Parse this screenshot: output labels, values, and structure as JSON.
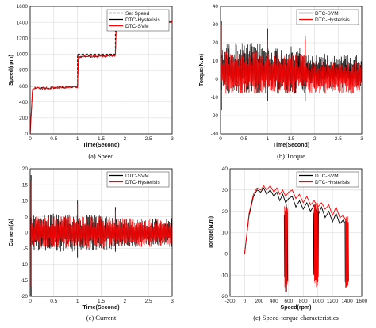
{
  "chart_data": [
    {
      "type": "line",
      "caption": "(a) Speed",
      "xlabel": "Time(Second)",
      "ylabel": "Speed(rpm)",
      "xlim": [
        0,
        3
      ],
      "ylim": [
        0,
        1600
      ],
      "xticks": [
        "0",
        "0.5",
        "1",
        "1.5",
        "2",
        "2.5",
        "3"
      ],
      "yticks": [
        "0",
        "200",
        "400",
        "600",
        "800",
        "1000",
        "1200",
        "1400",
        "1600"
      ],
      "legend": [
        "Set Speed",
        "DTC-Hysterisis",
        "DTC-SVM"
      ],
      "legend_position": "top-right",
      "series": [
        {
          "name": "Set Speed",
          "color": "#000000",
          "dashed": true,
          "x": [
            0,
            1,
            1,
            1.8,
            1.8,
            3
          ],
          "values": [
            600,
            600,
            1000,
            1000,
            1400,
            1400
          ]
        },
        {
          "name": "DTC-Hysterisis",
          "color": "#000000",
          "x": [
            0,
            0.05,
            0.1,
            1,
            1.02,
            1.8,
            1.82,
            3
          ],
          "values": [
            0,
            560,
            570,
            590,
            970,
            980,
            1390,
            1410
          ]
        },
        {
          "name": "DTC-SVM",
          "color": "#ff0000",
          "x": [
            0,
            0.05,
            0.1,
            1,
            1.02,
            1.8,
            1.82,
            3
          ],
          "values": [
            0,
            560,
            570,
            590,
            970,
            980,
            1390,
            1410
          ]
        }
      ]
    },
    {
      "type": "line",
      "caption": "(b) Torque",
      "xlabel": "Time(Second)",
      "ylabel": "Torque(N.m)",
      "xlim": [
        0,
        3
      ],
      "ylim": [
        -30,
        40
      ],
      "xticks": [
        "0",
        "0.5",
        "1",
        "1.5",
        "2",
        "2.5",
        "3"
      ],
      "yticks": [
        "-30",
        "-20",
        "-10",
        "0",
        "10",
        "20",
        "30",
        "40"
      ],
      "legend": [
        "DTC-SVM",
        "DTC-Hysterisis"
      ],
      "legend_position": "top-right",
      "series": [
        {
          "name": "DTC-SVM",
          "color": "#000000",
          "x": [
            0,
            1,
            1.8,
            3
          ],
          "values": [
            5,
            5,
            5,
            5
          ],
          "band": [
            [
              0,
              -8,
              20
            ],
            [
              1,
              -8,
              18
            ],
            [
              1.8,
              -5,
              14
            ],
            [
              3,
              -5,
              14
            ]
          ],
          "spikes": [
            [
              0.02,
              32
            ],
            [
              0.02,
              -17
            ],
            [
              1.0,
              28
            ],
            [
              1.0,
              -12
            ],
            [
              1.8,
              24
            ],
            [
              1.8,
              -12
            ]
          ]
        },
        {
          "name": "DTC-Hysterisis",
          "color": "#ff0000",
          "x": [
            0,
            1,
            1.8,
            3
          ],
          "values": [
            5,
            5,
            3,
            3
          ],
          "band": [
            [
              0,
              -8,
              15
            ],
            [
              1,
              -8,
              14
            ],
            [
              1.8,
              -8,
              10
            ],
            [
              3,
              -8,
              10
            ]
          ],
          "spikes": [
            [
              0.02,
              30
            ],
            [
              1.0,
              22
            ],
            [
              1.8,
              22
            ]
          ]
        }
      ]
    },
    {
      "type": "line",
      "caption": "(c) Current",
      "xlabel": "Time(Second)",
      "ylabel": "Current(A)",
      "xlim": [
        0,
        3
      ],
      "ylim": [
        -20,
        20
      ],
      "xticks": [
        "0",
        "0.5",
        "1",
        "1.5",
        "2",
        "2.5",
        "3"
      ],
      "yticks": [
        "-20",
        "-15",
        "-10",
        "-5",
        "0",
        "5",
        "10",
        "15",
        "20"
      ],
      "legend": [
        "DTC-SVM",
        "DTC-Hysterisis"
      ],
      "legend_position": "top-right",
      "series": [
        {
          "name": "DTC-SVM",
          "color": "#000000",
          "x": [
            0,
            1,
            1.8,
            3
          ],
          "values": [
            0,
            0,
            0,
            0
          ],
          "band": [
            [
              0,
              -6,
              6
            ],
            [
              1,
              -5.5,
              5.5
            ],
            [
              1.8,
              -4.5,
              4.5
            ],
            [
              3,
              -4.5,
              4.5
            ]
          ],
          "spikes": [
            [
              0.02,
              18
            ],
            [
              0.02,
              -20
            ],
            [
              1.0,
              10
            ],
            [
              1.0,
              -8
            ],
            [
              1.8,
              8
            ],
            [
              1.8,
              -6
            ]
          ]
        },
        {
          "name": "DTC-Hysterisis",
          "color": "#ff0000",
          "x": [
            0,
            1,
            1.8,
            3
          ],
          "values": [
            0,
            0,
            0,
            0
          ],
          "band": [
            [
              0,
              -5,
              5
            ],
            [
              1,
              -5,
              5
            ],
            [
              1.8,
              -4.5,
              4.5
            ],
            [
              3,
              -4.5,
              4.5
            ]
          ],
          "spikes": [
            [
              0.02,
              16
            ],
            [
              0.02,
              -17
            ],
            [
              1.0,
              9
            ],
            [
              1.8,
              7
            ]
          ]
        }
      ]
    },
    {
      "type": "line",
      "caption": "(c) Speed-torque characteristics",
      "xlabel": "Speed(rpm)",
      "ylabel": "Torque(N.m)",
      "xlim": [
        -200,
        1600
      ],
      "ylim": [
        -20,
        40
      ],
      "xticks": [
        "-200",
        "0",
        "200",
        "400",
        "600",
        "800",
        "1000",
        "1200",
        "1400",
        "1600"
      ],
      "yticks": [
        "-20",
        "-10",
        "0",
        "10",
        "20",
        "30",
        "40"
      ],
      "legend": [
        "DTC-SVM",
        "DTC-Hysterisis"
      ],
      "legend_position": "top-right",
      "series": [
        {
          "name": "DTC-SVM",
          "color": "#000000",
          "x": [
            0,
            60,
            120,
            170,
            220,
            260,
            300,
            350,
            400,
            440,
            480,
            520,
            560,
            600,
            650,
            700,
            750,
            800,
            850,
            900,
            950,
            1000,
            1050,
            1100,
            1150,
            1200,
            1250,
            1300,
            1350,
            1400
          ],
          "values": [
            0,
            18,
            27,
            30,
            29,
            31,
            28,
            30,
            27,
            29,
            25,
            28,
            24,
            26,
            27,
            22,
            25,
            21,
            24,
            20,
            23,
            18,
            22,
            17,
            20,
            15,
            19,
            14,
            16,
            12
          ],
          "band_segments": [
            [
              540,
              590,
              -14,
              22
            ],
            [
              940,
              1010,
              -12,
              22
            ],
            [
              1370,
              1420,
              -14,
              16
            ]
          ]
        },
        {
          "name": "DTC-Hysterisis",
          "color": "#ff0000",
          "x": [
            0,
            60,
            120,
            170,
            220,
            260,
            300,
            350,
            400,
            440,
            480,
            520,
            560,
            600,
            650,
            700,
            750,
            800,
            850,
            900,
            950,
            1000,
            1050,
            1100,
            1150,
            1200,
            1250,
            1300,
            1350,
            1400
          ],
          "values": [
            0,
            19,
            28,
            31,
            30,
            32,
            30,
            32,
            29,
            31,
            28,
            30,
            27,
            29,
            30,
            26,
            28,
            24,
            27,
            23,
            25,
            22,
            24,
            21,
            23,
            18,
            22,
            17,
            18,
            14
          ],
          "band_segments": [
            [
              545,
              585,
              -18,
              24
            ],
            [
              950,
              1000,
              -16,
              24
            ],
            [
              1375,
              1415,
              -18,
              18
            ]
          ]
        }
      ]
    }
  ]
}
